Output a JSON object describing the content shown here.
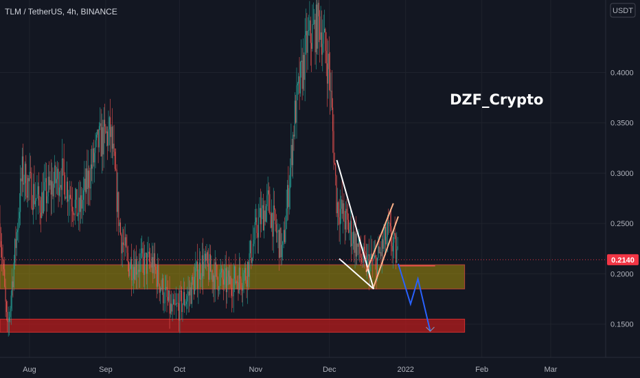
{
  "header": {
    "symbol_line": "TLM / TetherUS, 4h, BINANCE"
  },
  "currency_button": "USDT",
  "watermark": "DZF_Crypto",
  "colors": {
    "background": "#131722",
    "grid": "#1f232d",
    "candle_up": "#26a69a",
    "candle_down": "#ef5350",
    "zone_support": "#a58f0b",
    "zone_lower": "#b71c1c",
    "price_badge": "#f23645",
    "projection": "#2962ff",
    "pattern_lines": "#ffffff",
    "pattern_lines_alt": "#ffb38a"
  },
  "chart_data": {
    "type": "candlestick",
    "title": "TLM / TetherUS, 4h, BINANCE",
    "last_price": "0.2140",
    "y_ticks": [
      "0.1500",
      "0.2000",
      "0.2500",
      "0.3000",
      "0.3500",
      "0.4000"
    ],
    "ylim": [
      0.117,
      0.472
    ],
    "x_ticks": [
      "Aug",
      "Sep",
      "Oct",
      "Nov",
      "Dec",
      "2022",
      "Feb",
      "Mar"
    ],
    "grid": true,
    "price_path": [
      {
        "date": "2021-07-20",
        "price": 0.25
      },
      {
        "date": "2021-07-23",
        "price": 0.14
      },
      {
        "date": "2021-07-29",
        "price": 0.3
      },
      {
        "date": "2021-08-05",
        "price": 0.27
      },
      {
        "date": "2021-08-14",
        "price": 0.3
      },
      {
        "date": "2021-08-21",
        "price": 0.26
      },
      {
        "date": "2021-08-29",
        "price": 0.33
      },
      {
        "date": "2021-09-03",
        "price": 0.34
      },
      {
        "date": "2021-09-07",
        "price": 0.24
      },
      {
        "date": "2021-09-10",
        "price": 0.21
      },
      {
        "date": "2021-09-20",
        "price": 0.21
      },
      {
        "date": "2021-09-28",
        "price": 0.16
      },
      {
        "date": "2021-10-05",
        "price": 0.18
      },
      {
        "date": "2021-10-10",
        "price": 0.21
      },
      {
        "date": "2021-10-20",
        "price": 0.19
      },
      {
        "date": "2021-10-28",
        "price": 0.2
      },
      {
        "date": "2021-11-02",
        "price": 0.25
      },
      {
        "date": "2021-11-06",
        "price": 0.27
      },
      {
        "date": "2021-11-12",
        "price": 0.22
      },
      {
        "date": "2021-11-17",
        "price": 0.36
      },
      {
        "date": "2021-11-22",
        "price": 0.43
      },
      {
        "date": "2021-11-27",
        "price": 0.45
      },
      {
        "date": "2021-12-01",
        "price": 0.4
      },
      {
        "date": "2021-12-04",
        "price": 0.27
      },
      {
        "date": "2021-12-10",
        "price": 0.24
      },
      {
        "date": "2021-12-15",
        "price": 0.21
      },
      {
        "date": "2021-12-20",
        "price": 0.21
      },
      {
        "date": "2021-12-25",
        "price": 0.24
      },
      {
        "date": "2021-12-29",
        "price": 0.214
      }
    ],
    "zones": [
      {
        "from_date": "2021-07-20",
        "to_date": "2022-01-25",
        "low": 0.185,
        "high": 0.209
      },
      {
        "from_date": "2021-07-20",
        "to_date": "2022-01-25",
        "low": 0.142,
        "high": 0.155
      }
    ],
    "pattern_lines": [
      {
        "from": {
          "date": "2021-12-04",
          "price": 0.313
        },
        "to": {
          "date": "2021-12-19",
          "price": 0.185
        }
      },
      {
        "from": {
          "date": "2021-12-05",
          "price": 0.215
        },
        "to": {
          "date": "2021-12-19",
          "price": 0.185
        }
      },
      {
        "from": {
          "date": "2021-12-16",
          "price": 0.202
        },
        "to": {
          "date": "2021-12-27",
          "price": 0.27
        }
      },
      {
        "from": {
          "date": "2021-12-19",
          "price": 0.187
        },
        "to": {
          "date": "2021-12-29",
          "price": 0.257
        }
      }
    ],
    "resistance_line": {
      "from_date": "2021-12-29",
      "to_date": "2022-01-13",
      "price": 0.208
    },
    "projection": [
      {
        "date": "2021-12-29",
        "price": 0.21
      },
      {
        "date": "2022-01-03",
        "price": 0.17
      },
      {
        "date": "2022-01-06",
        "price": 0.195
      },
      {
        "date": "2022-01-11",
        "price": 0.143
      }
    ]
  }
}
